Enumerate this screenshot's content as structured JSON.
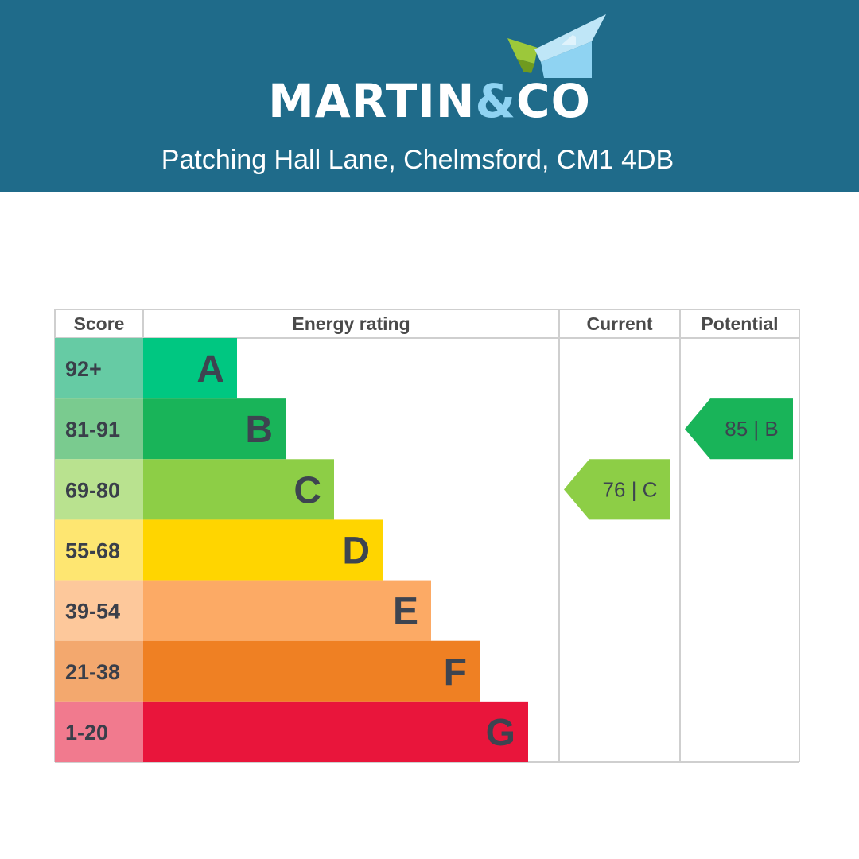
{
  "header": {
    "brand_left": "MARTIN",
    "brand_amp": "&",
    "brand_right": "CO",
    "address": "Patching Hall Lane, Chelmsford, CM1 4DB",
    "bg_color": "#1f6b8a"
  },
  "chart_data": {
    "type": "table",
    "columns": [
      "Score",
      "Energy rating",
      "Current",
      "Potential"
    ],
    "bands": [
      {
        "score": "92+",
        "letter": "A",
        "color": "#00c781",
        "score_bg": "#66cba4"
      },
      {
        "score": "81-91",
        "letter": "B",
        "color": "#19b459",
        "score_bg": "#7acb8f"
      },
      {
        "score": "69-80",
        "letter": "C",
        "color": "#8dce46",
        "score_bg": "#b9e28f"
      },
      {
        "score": "55-68",
        "letter": "D",
        "color": "#ffd500",
        "score_bg": "#fee671"
      },
      {
        "score": "39-54",
        "letter": "E",
        "color": "#fcaa65",
        "score_bg": "#fdc89b"
      },
      {
        "score": "21-38",
        "letter": "F",
        "color": "#ef8023",
        "score_bg": "#f3a86e"
      },
      {
        "score": "1-20",
        "letter": "G",
        "color": "#e9153b",
        "score_bg": "#f17a8e"
      }
    ],
    "current": {
      "value": 76,
      "letter": "C",
      "label": "76 | C",
      "color": "#8dce46"
    },
    "potential": {
      "value": 85,
      "letter": "B",
      "label": "85 | B",
      "color": "#19b459"
    }
  }
}
